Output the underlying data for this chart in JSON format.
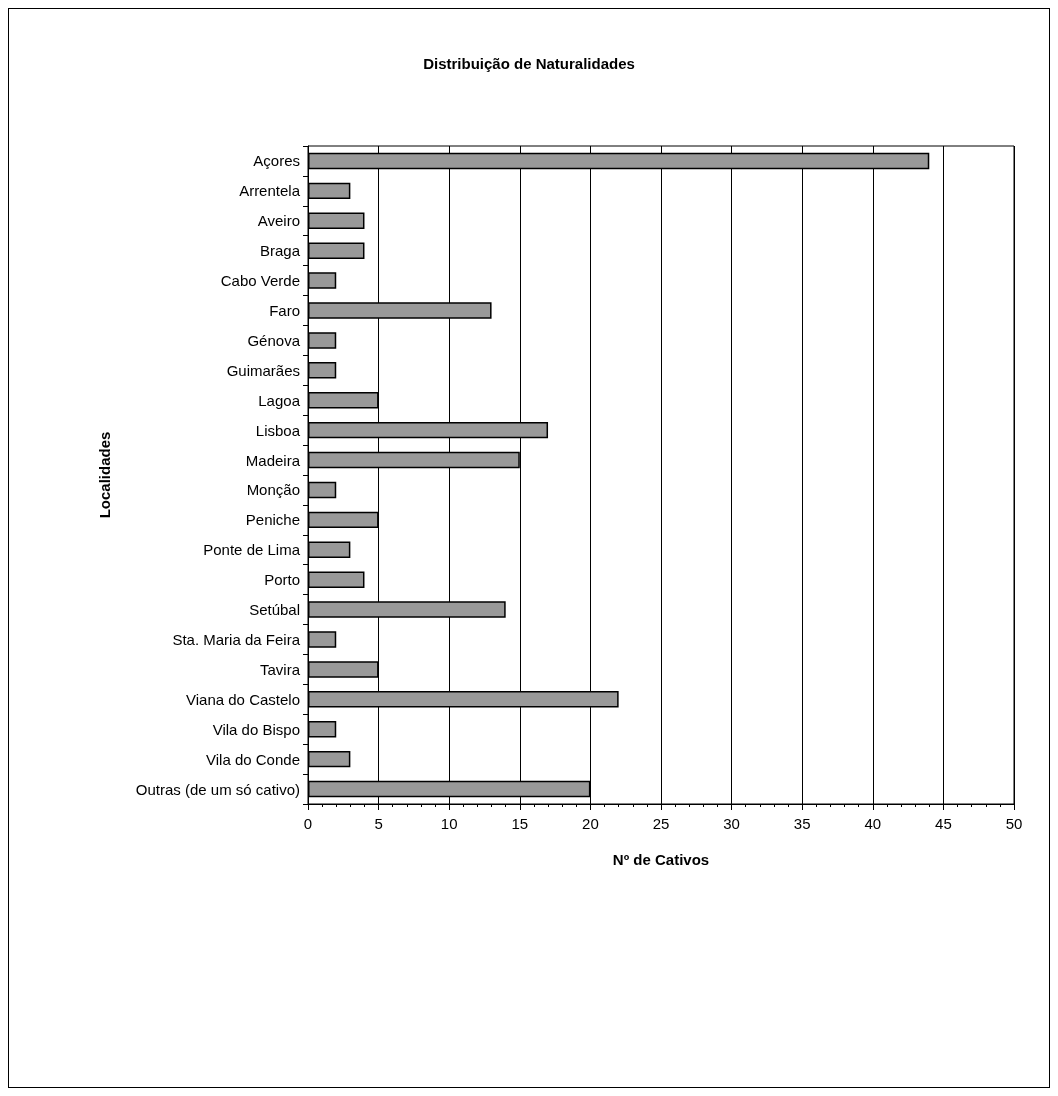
{
  "chart_data": {
    "type": "bar",
    "orientation": "horizontal",
    "title": "Distribuição de Naturalidades",
    "xlabel": "Nº de Cativos",
    "ylabel": "Localidades",
    "categories": [
      "Açores",
      "Arrentela",
      "Aveiro",
      "Braga",
      "Cabo Verde",
      "Faro",
      "Génova",
      "Guimarães",
      "Lagoa",
      "Lisboa",
      "Madeira",
      "Monção",
      "Peniche",
      "Ponte de Lima",
      "Porto",
      "Setúbal",
      "Sta. Maria da Feira",
      "Tavira",
      "Viana do Castelo",
      "Vila do Bispo",
      "Vila do Conde",
      "Outras (de um só cativo)"
    ],
    "values": [
      44,
      3,
      4,
      4,
      2,
      13,
      2,
      2,
      5,
      17,
      15,
      2,
      5,
      3,
      4,
      14,
      2,
      5,
      22,
      2,
      3,
      20
    ],
    "color": "#999999",
    "xlim": [
      0,
      50
    ],
    "xticks": [
      0,
      5,
      10,
      15,
      20,
      25,
      30,
      35,
      40,
      45,
      50
    ],
    "grid": "x"
  }
}
